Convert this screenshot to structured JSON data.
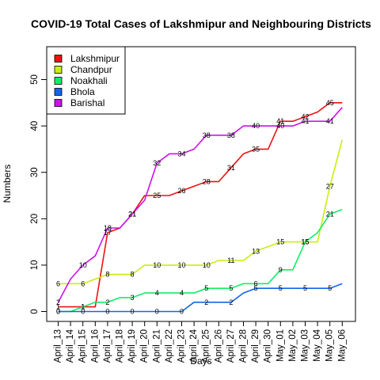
{
  "chart_data": {
    "type": "line",
    "title": "COVID-19 Total Cases of Lakshmipur and Neighbouring Districts",
    "xlabel": "Days",
    "ylabel": "Numbers",
    "ylim": [
      0,
      50
    ],
    "yticks": [
      0,
      10,
      20,
      30,
      40,
      50
    ],
    "legend_position": "top-left",
    "x": [
      "April_13",
      "April_14",
      "April_15",
      "April_16",
      "April_17",
      "April_18",
      "April_19",
      "April_20",
      "April_21",
      "April_22",
      "April_23",
      "April_24",
      "April_25",
      "April_26",
      "April_27",
      "April_28",
      "April_29",
      "April_30",
      "May_01",
      "May_02",
      "May_03",
      "May_04",
      "May_05",
      "May_06"
    ],
    "x_tick_labels": [
      "April_13",
      "April_14",
      "April_15",
      "April_16",
      "April_17",
      "April_18",
      "April_19",
      "April_20",
      "April_21",
      "April_22",
      "April_23",
      "April_24",
      "April_25",
      "April_26",
      "April_27",
      "April_28",
      "April_29",
      "April_30",
      "May_01",
      "May_02",
      "May_03",
      "May_04",
      "May_05",
      "May_06"
    ],
    "series": [
      {
        "name": "Lakshmipur",
        "color": "#EE1111",
        "values": [
          1,
          1,
          1,
          1,
          17,
          18,
          21,
          25,
          25,
          25,
          26,
          27,
          28,
          28,
          31,
          34,
          35,
          35,
          41,
          41,
          42,
          43,
          45,
          45
        ],
        "labels": [
          {
            "i": 0,
            "t": "1"
          },
          {
            "i": 2,
            "t": "1"
          },
          {
            "i": 4,
            "t": "17"
          },
          {
            "i": 6,
            "t": "21"
          },
          {
            "i": 8,
            "t": "25"
          },
          {
            "i": 10,
            "t": "26"
          },
          {
            "i": 12,
            "t": "28"
          },
          {
            "i": 14,
            "t": "31"
          },
          {
            "i": 16,
            "t": "35"
          },
          {
            "i": 18,
            "t": "41"
          },
          {
            "i": 20,
            "t": "42"
          },
          {
            "i": 22,
            "t": "45"
          }
        ]
      },
      {
        "name": "Chandpur",
        "color": "#C8EE11",
        "values": [
          6,
          6,
          6,
          7,
          8,
          8,
          8,
          10,
          10,
          10,
          10,
          10,
          10,
          11,
          11,
          11,
          13,
          14,
          15,
          15,
          15,
          15,
          27,
          37
        ],
        "labels": [
          {
            "i": 0,
            "t": "6"
          },
          {
            "i": 2,
            "t": "6"
          },
          {
            "i": 4,
            "t": "8"
          },
          {
            "i": 6,
            "t": "8"
          },
          {
            "i": 8,
            "t": "10"
          },
          {
            "i": 10,
            "t": "10"
          },
          {
            "i": 12,
            "t": "10"
          },
          {
            "i": 14,
            "t": "11"
          },
          {
            "i": 16,
            "t": "13"
          },
          {
            "i": 18,
            "t": "15"
          },
          {
            "i": 20,
            "t": "15"
          },
          {
            "i": 22,
            "t": "27"
          }
        ]
      },
      {
        "name": "Noakhali",
        "color": "#11EE66",
        "values": [
          0,
          0,
          1,
          2,
          2,
          3,
          3,
          4,
          4,
          4,
          4,
          4,
          5,
          5,
          5,
          6,
          6,
          6,
          9,
          9,
          15,
          17,
          21,
          22
        ],
        "labels": [
          {
            "i": 0,
            "t": "0"
          },
          {
            "i": 2,
            "t": "1"
          },
          {
            "i": 4,
            "t": "2"
          },
          {
            "i": 6,
            "t": "3"
          },
          {
            "i": 8,
            "t": "4"
          },
          {
            "i": 10,
            "t": "4"
          },
          {
            "i": 12,
            "t": "5"
          },
          {
            "i": 14,
            "t": "5"
          },
          {
            "i": 16,
            "t": "6"
          },
          {
            "i": 18,
            "t": "9"
          },
          {
            "i": 20,
            "t": "15"
          },
          {
            "i": 22,
            "t": "21"
          }
        ]
      },
      {
        "name": "Bhola",
        "color": "#1166EE",
        "values": [
          0,
          0,
          0,
          0,
          0,
          0,
          0,
          0,
          0,
          0,
          0,
          2,
          2,
          2,
          2,
          4,
          5,
          5,
          5,
          5,
          5,
          5,
          5,
          6
        ],
        "labels": [
          {
            "i": 0,
            "t": "0"
          },
          {
            "i": 2,
            "t": "0"
          },
          {
            "i": 4,
            "t": "0"
          },
          {
            "i": 6,
            "t": "0"
          },
          {
            "i": 8,
            "t": "0"
          },
          {
            "i": 10,
            "t": "0"
          },
          {
            "i": 12,
            "t": "2"
          },
          {
            "i": 14,
            "t": "2"
          },
          {
            "i": 16,
            "t": "5"
          },
          {
            "i": 18,
            "t": "5"
          },
          {
            "i": 20,
            "t": "5"
          },
          {
            "i": 22,
            "t": "5"
          }
        ]
      },
      {
        "name": "Barishal",
        "color": "#CC11EE",
        "values": [
          2,
          7,
          10,
          12,
          18,
          18,
          21,
          24,
          32,
          34,
          34,
          35,
          38,
          38,
          38,
          40,
          40,
          40,
          40,
          40,
          41,
          41,
          41,
          44
        ],
        "labels": [
          {
            "i": 0,
            "t": "2"
          },
          {
            "i": 2,
            "t": "10"
          },
          {
            "i": 4,
            "t": "18"
          },
          {
            "i": 6,
            "t": "21"
          },
          {
            "i": 8,
            "t": "32"
          },
          {
            "i": 10,
            "t": "34"
          },
          {
            "i": 12,
            "t": "38"
          },
          {
            "i": 14,
            "t": "38"
          },
          {
            "i": 16,
            "t": "40"
          },
          {
            "i": 18,
            "t": "40"
          },
          {
            "i": 20,
            "t": "41"
          },
          {
            "i": 22,
            "t": "41"
          }
        ]
      }
    ]
  }
}
